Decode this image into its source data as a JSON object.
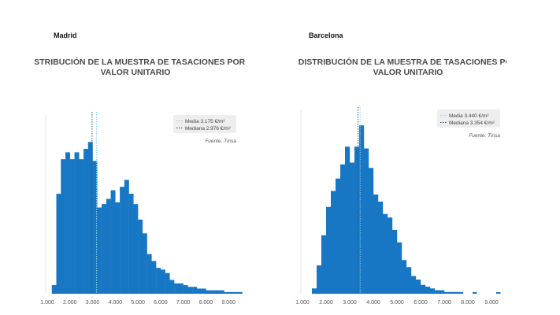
{
  "panels": [
    {
      "label": "Madrid"
    },
    {
      "label": "Barcelona"
    }
  ],
  "chart_data": [
    {
      "type": "bar",
      "title_lines": [
        "DISTRIBUCIÓN DE LA MUESTRA DE TASACIONES POR",
        "VALOR UNITARIO"
      ],
      "xticks": [
        "1.000",
        "2.000",
        "3.000",
        "4.000",
        "5.000",
        "6.000",
        "7.000",
        "8.000",
        "9.000"
      ],
      "xlim": [
        1000,
        9200
      ],
      "ylim": [
        0,
        100
      ],
      "bin_width": 200,
      "bins_start": 1200,
      "values": [
        5,
        58,
        78,
        82,
        78,
        82,
        78,
        84,
        88,
        77,
        50,
        52,
        55,
        60,
        53,
        62,
        66,
        58,
        52,
        43,
        35,
        23,
        19,
        15,
        14,
        12,
        8,
        6,
        6,
        5,
        4,
        4,
        3,
        3,
        2,
        2,
        2,
        2,
        1,
        1,
        1,
        1
      ],
      "mean": 3175,
      "median": 2976,
      "mean_color": "#8fd3e8",
      "median_color": "#2b4a8c",
      "bar_color": "#1777c4",
      "legend": {
        "mean": "Media 3.175 €/m²",
        "median": "Mediana 2.976 €/m²"
      },
      "source": "Fuente: Tinsa"
    },
    {
      "type": "bar",
      "title_lines": [
        "DISTRIBUCIÓN DE LA MUESTRA DE TASACIONES POR",
        "VALOR UNITARIO"
      ],
      "xticks": [
        "1.000",
        "2.000",
        "3.000",
        "4.000",
        "5.000",
        "6.000",
        "7.000",
        "8.000",
        "9.000"
      ],
      "xlim": [
        1000,
        9200
      ],
      "ylim": [
        0,
        100
      ],
      "bin_width": 200,
      "bins_start": 1400,
      "values": [
        3,
        16,
        33,
        49,
        58,
        65,
        73,
        83,
        74,
        83,
        95,
        82,
        71,
        56,
        52,
        45,
        43,
        36,
        29,
        19,
        15,
        10,
        8,
        5,
        4,
        3,
        2,
        2,
        1,
        1,
        1,
        1
      ],
      "extra_bins": [
        {
          "x": 6600,
          "v": 1
        },
        {
          "x": 7400,
          "v": 1
        },
        {
          "x": 8200,
          "v": 1
        },
        {
          "x": 9200,
          "v": 1
        }
      ],
      "mean": 3440,
      "median": 3354,
      "mean_color": "#8fd3e8",
      "median_color": "#2b4a8c",
      "bar_color": "#1777c4",
      "legend": {
        "mean": "Media 3.440 €/m²",
        "median": "Mediana 3.354 €/m²"
      },
      "source": "Fuente: Tinsa"
    }
  ]
}
